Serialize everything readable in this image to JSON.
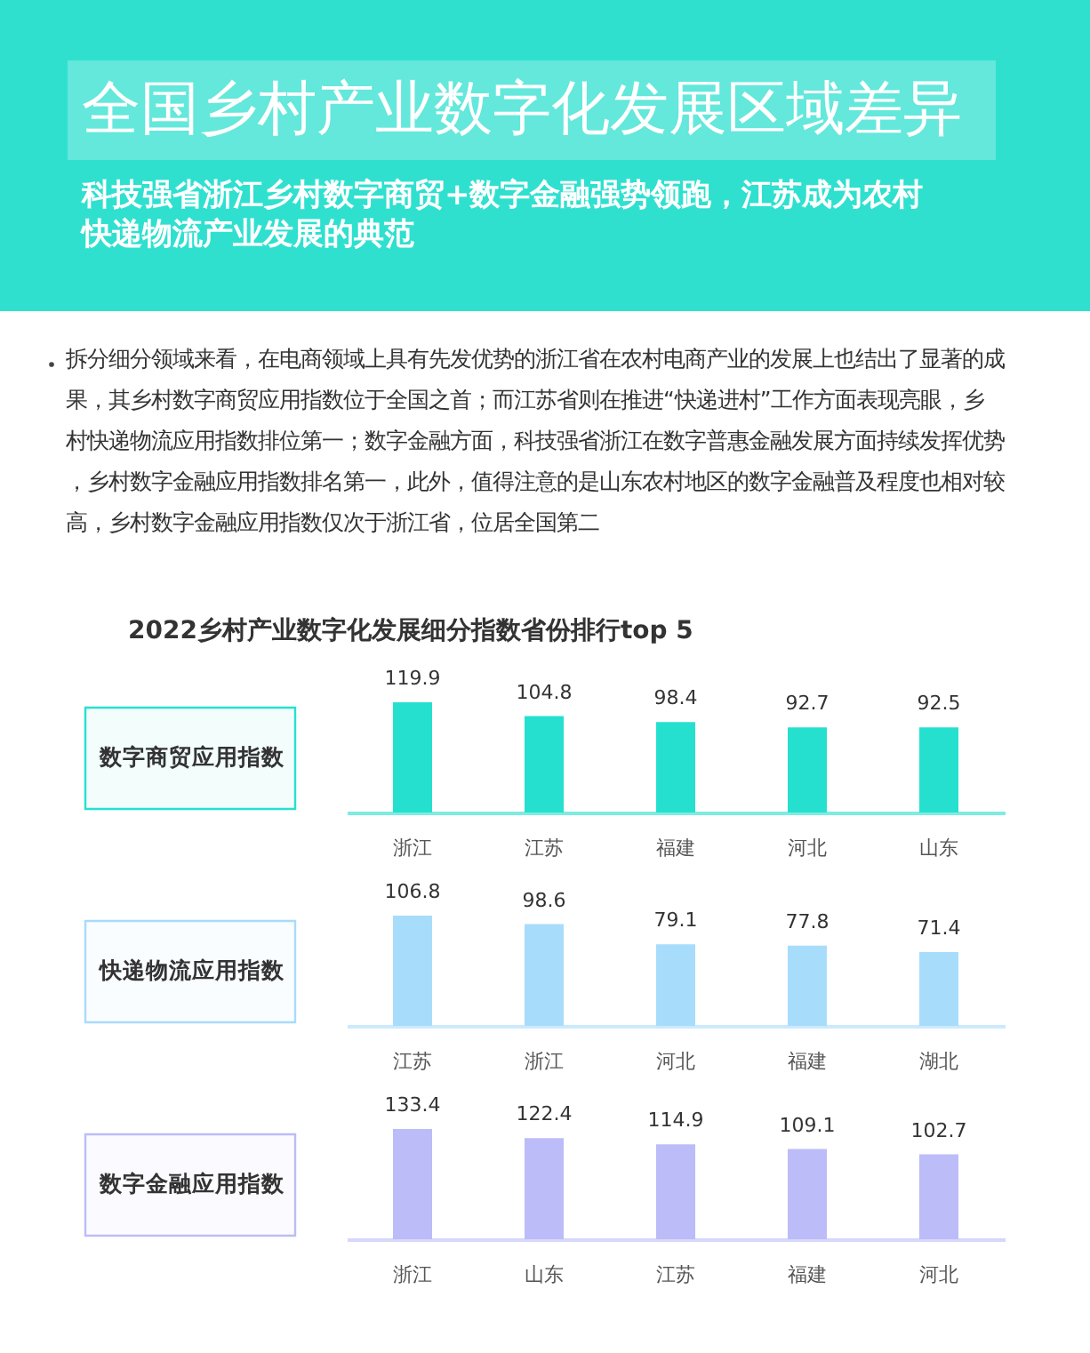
{
  "chart_data": [
    {
      "type": "bar",
      "title": "全国乡村产业数字化发展区域差异",
      "subtitle": "科技强省浙江乡村数字商贸+数字金融强势领跑，江苏成为农村快递物流产业发展的典范",
      "annotations": [
        "拆分细分领域来看，在电商领域上具有先发优势的浙江省在农村电商产业的发展上也结出了显著的成果，其乡村数字商贸应用指数位于全国之首；而江苏省则在推进“快递进村”工作方面表现亮眼，乡村快递物流应用指数排位第一；数字金融方面，科技强省浙江在数字普惠金融发展方面持续发挥优势，乡村数字金融应用指数排名第一，此外，值得注意的是山东农村地区的数字金融普及程度也相对较高，乡村数字金融应用指数仅次于浙江省，位居全国第二",
        "2022乡村产业数字化发展细分指数省份排行top 5"
      ],
      "ylabel": "数字商贸应用指数",
      "categories": [
        "浙江",
        "江苏",
        "福建",
        "河北",
        "山东"
      ],
      "values": [
        119.9,
        104.8,
        98.4,
        92.7,
        92.5
      ],
      "color": "#26e0cf",
      "data_labels": true,
      "grid": false
    },
    {
      "type": "bar",
      "ylabel": "快递物流应用指数",
      "categories": [
        "江苏",
        "浙江",
        "河北",
        "福建",
        "湖北"
      ],
      "values": [
        106.8,
        98.6,
        79.1,
        77.8,
        71.4
      ],
      "color": "#a8dcfb",
      "data_labels": true,
      "grid": false
    },
    {
      "type": "bar",
      "ylabel": "数字金融应用指数",
      "categories": [
        "浙江",
        "山东",
        "江苏",
        "福建",
        "河北"
      ],
      "values": [
        133.4,
        122.4,
        114.9,
        109.1,
        102.7
      ],
      "color": "#bcbcf8",
      "data_labels": true,
      "grid": false
    }
  ]
}
